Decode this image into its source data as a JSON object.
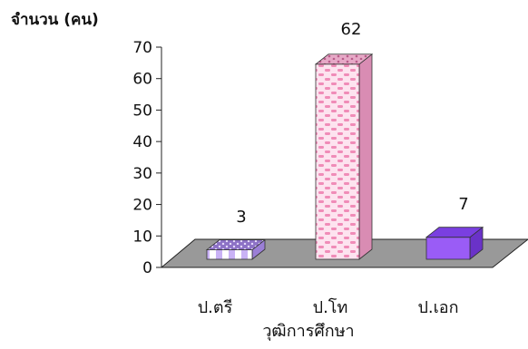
{
  "chart_data": {
    "type": "bar",
    "style": "3d-column",
    "ylabel": "จำนวน (คน)",
    "xlabel": "วุฒิการศึกษา",
    "categories": [
      "ป.ตรี",
      "ป.โท",
      "ป.เอก"
    ],
    "values": [
      3,
      62,
      7
    ],
    "data_labels": [
      "3",
      "62",
      "7"
    ],
    "ylim": [
      0,
      70
    ],
    "yticks": [
      "0",
      "10",
      "20",
      "30",
      "40",
      "50",
      "60",
      "70"
    ],
    "grid": false,
    "legend": "none",
    "colors": {
      "floor": "#999999",
      "bar1_front": "#d8c4ff",
      "bar1_top": "#9b7fd6",
      "bar2_front": "#ffd6ea",
      "bar2_top": "#d98cb3",
      "bar3_front": "#9a5cf6",
      "bar3_top": "#7a3fe0",
      "bar3_side": "#6a32c8"
    }
  }
}
